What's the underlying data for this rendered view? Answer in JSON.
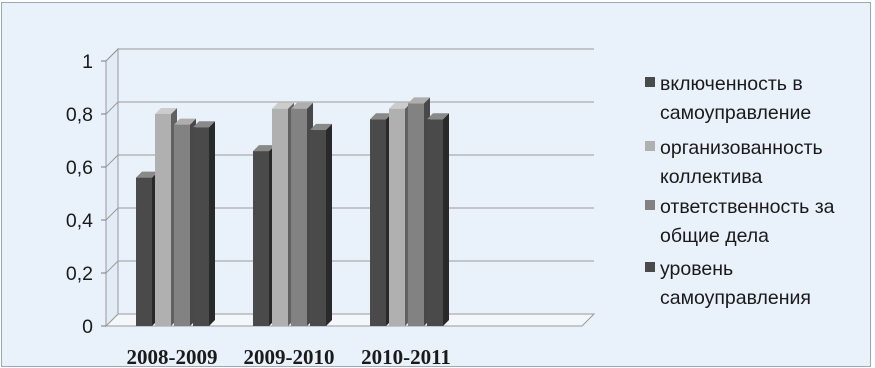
{
  "chart_data": {
    "type": "bar",
    "title": "",
    "xlabel": "",
    "ylabel": "",
    "categories": [
      "2008-2009",
      "2009-2010",
      "2010-2011"
    ],
    "series": [
      {
        "name": "включенность в самоуправление",
        "values": [
          0.56,
          0.66,
          0.78
        ],
        "color": "#4a4a4a"
      },
      {
        "name": "организованность коллектива",
        "values": [
          0.8,
          0.82,
          0.82
        ],
        "color": "#b0b0b0"
      },
      {
        "name": "ответственность за общие дела",
        "values": [
          0.76,
          0.82,
          0.84
        ],
        "color": "#828282"
      },
      {
        "name": "уровень самоуправления",
        "values": [
          0.75,
          0.74,
          0.78
        ],
        "color": "#4a4a4a"
      }
    ],
    "ylim": [
      0,
      1
    ],
    "yticks": [
      "0",
      "0,2",
      "0,4",
      "0,6",
      "0,8",
      "1"
    ],
    "grid": true,
    "legend_position": "right"
  }
}
